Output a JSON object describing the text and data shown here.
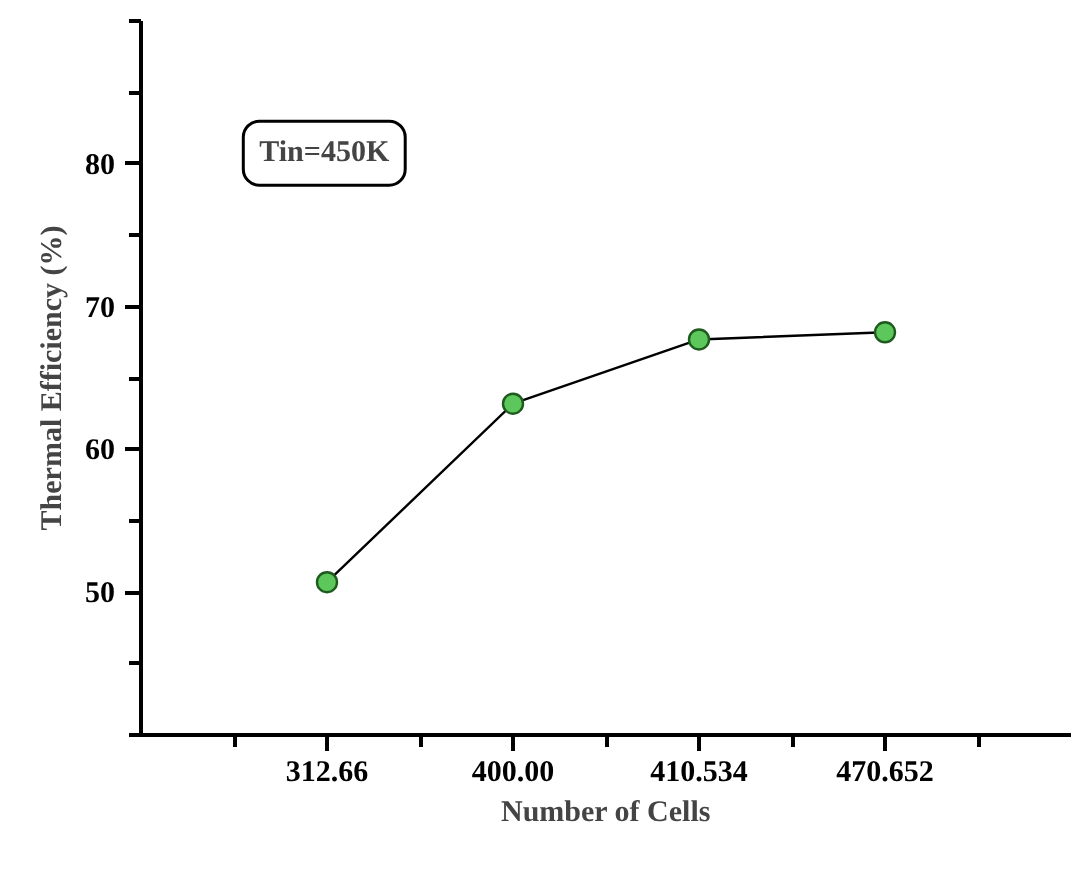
{
  "chart_data": {
    "type": "line",
    "xlabel": "Number of Cells",
    "ylabel": "Thermal Efficiency (%)",
    "categories": [
      "312.66",
      "400.00",
      "410.534",
      "470.652"
    ],
    "series": [
      {
        "color": "#5cc85c",
        "values": [
          50.7,
          63.2,
          67.7,
          68.2
        ]
      }
    ],
    "ylim": [
      40,
      90
    ],
    "yticks": [
      50,
      60,
      70,
      80
    ],
    "annotations": [
      "Tin=450K"
    ],
    "marker": "circle",
    "line_style": "solid",
    "grid": false
  }
}
